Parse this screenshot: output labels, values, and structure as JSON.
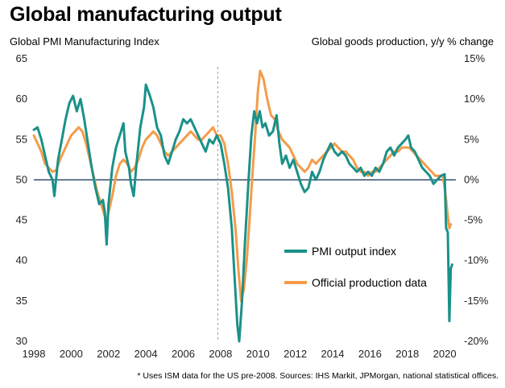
{
  "chart_data": {
    "type": "line",
    "title": "Global manufacturing output",
    "ylabel_left": "Global  PMI Manufacturing Index",
    "ylabel_right": "Global  goods production, y/y % change",
    "footnote": "* Uses ISM data for the US pre-2008. Sources: IHS Markit, JPMorgan, national statistical offices.",
    "x_ticks": [
      "1998",
      "2000",
      "2002",
      "2004",
      "2006",
      "2008",
      "2010",
      "2012",
      "2014",
      "2016",
      "2018",
      "2020"
    ],
    "xlim": [
      1998,
      2020.6
    ],
    "y_left_ticks": [
      "65",
      "60",
      "55",
      "50",
      "45",
      "40",
      "35",
      "30"
    ],
    "y_left_lim": [
      30,
      65
    ],
    "y_right_ticks": [
      "15%",
      "10%",
      "5%",
      "0%",
      "-5%",
      "-10%",
      "-15%",
      "-20%"
    ],
    "y_right_lim": [
      -20,
      15
    ],
    "reference_line": 50,
    "vertical_marker": 2007.85,
    "colors": {
      "pmi": "#1a9189",
      "production": "#f49c4a",
      "refline": "#1f3a5f",
      "marker": "#9a9a9a"
    },
    "legend": [
      {
        "name": "PMI output index",
        "color": "#1a9189"
      },
      {
        "name": "Official production data",
        "color": "#f49c4a"
      }
    ],
    "series": [
      {
        "name": "PMI output index",
        "axis": "left",
        "points": [
          [
            1998.0,
            56.2
          ],
          [
            1998.2,
            56.5
          ],
          [
            1998.4,
            55.0
          ],
          [
            1998.6,
            53.0
          ],
          [
            1998.8,
            51.0
          ],
          [
            1999.0,
            50.0
          ],
          [
            1999.1,
            48.0
          ],
          [
            1999.3,
            52.5
          ],
          [
            1999.5,
            55.0
          ],
          [
            1999.7,
            57.5
          ],
          [
            1999.9,
            59.5
          ],
          [
            2000.1,
            60.4
          ],
          [
            2000.3,
            58.5
          ],
          [
            2000.5,
            60.0
          ],
          [
            2000.7,
            57.5
          ],
          [
            2000.9,
            54.5
          ],
          [
            2001.1,
            51.5
          ],
          [
            2001.3,
            49.0
          ],
          [
            2001.5,
            47.0
          ],
          [
            2001.7,
            47.5
          ],
          [
            2001.8,
            46.0
          ],
          [
            2001.9,
            42.0
          ],
          [
            2002.0,
            47.0
          ],
          [
            2002.2,
            51.5
          ],
          [
            2002.4,
            54.0
          ],
          [
            2002.6,
            55.5
          ],
          [
            2002.8,
            57.0
          ],
          [
            2002.9,
            53.5
          ],
          [
            2003.1,
            51.5
          ],
          [
            2003.2,
            49.5
          ],
          [
            2003.35,
            48.0
          ],
          [
            2003.5,
            52.0
          ],
          [
            2003.7,
            56.5
          ],
          [
            2003.9,
            59.0
          ],
          [
            2004.0,
            61.8
          ],
          [
            2004.2,
            60.5
          ],
          [
            2004.4,
            59.0
          ],
          [
            2004.6,
            56.5
          ],
          [
            2004.8,
            55.5
          ],
          [
            2005.0,
            53.0
          ],
          [
            2005.2,
            52.0
          ],
          [
            2005.4,
            53.5
          ],
          [
            2005.6,
            55.0
          ],
          [
            2005.8,
            56.0
          ],
          [
            2006.0,
            57.5
          ],
          [
            2006.2,
            57.0
          ],
          [
            2006.4,
            57.5
          ],
          [
            2006.6,
            56.5
          ],
          [
            2006.8,
            55.5
          ],
          [
            2007.0,
            54.5
          ],
          [
            2007.2,
            53.5
          ],
          [
            2007.4,
            55.0
          ],
          [
            2007.6,
            54.5
          ],
          [
            2007.8,
            55.5
          ],
          [
            2008.0,
            54.5
          ],
          [
            2008.2,
            52.0
          ],
          [
            2008.4,
            49.0
          ],
          [
            2008.6,
            44.0
          ],
          [
            2008.75,
            38.0
          ],
          [
            2008.9,
            32.0
          ],
          [
            2009.0,
            30.0
          ],
          [
            2009.15,
            35.0
          ],
          [
            2009.3,
            42.0
          ],
          [
            2009.5,
            50.0
          ],
          [
            2009.65,
            55.5
          ],
          [
            2009.8,
            58.5
          ],
          [
            2009.95,
            57.0
          ],
          [
            2010.1,
            58.5
          ],
          [
            2010.25,
            56.5
          ],
          [
            2010.4,
            57.0
          ],
          [
            2010.6,
            55.5
          ],
          [
            2010.8,
            56.0
          ],
          [
            2011.0,
            58.0
          ],
          [
            2011.15,
            54.5
          ],
          [
            2011.3,
            52.0
          ],
          [
            2011.5,
            53.0
          ],
          [
            2011.7,
            51.5
          ],
          [
            2011.9,
            52.5
          ],
          [
            2012.1,
            51.0
          ],
          [
            2012.3,
            49.5
          ],
          [
            2012.5,
            48.5
          ],
          [
            2012.7,
            49.0
          ],
          [
            2012.9,
            51.0
          ],
          [
            2013.1,
            50.0
          ],
          [
            2013.3,
            51.0
          ],
          [
            2013.5,
            52.5
          ],
          [
            2013.7,
            53.5
          ],
          [
            2013.9,
            54.5
          ],
          [
            2014.1,
            53.5
          ],
          [
            2014.3,
            53.0
          ],
          [
            2014.5,
            53.5
          ],
          [
            2014.7,
            53.0
          ],
          [
            2014.9,
            52.0
          ],
          [
            2015.1,
            51.5
          ],
          [
            2015.3,
            51.0
          ],
          [
            2015.5,
            51.5
          ],
          [
            2015.7,
            50.5
          ],
          [
            2015.9,
            51.0
          ],
          [
            2016.1,
            50.5
          ],
          [
            2016.3,
            51.5
          ],
          [
            2016.5,
            51.0
          ],
          [
            2016.7,
            52.0
          ],
          [
            2016.9,
            53.5
          ],
          [
            2017.1,
            54.0
          ],
          [
            2017.3,
            53.0
          ],
          [
            2017.5,
            54.0
          ],
          [
            2017.7,
            54.5
          ],
          [
            2017.9,
            55.0
          ],
          [
            2018.05,
            55.5
          ],
          [
            2018.2,
            54.0
          ],
          [
            2018.4,
            53.5
          ],
          [
            2018.6,
            52.5
          ],
          [
            2018.8,
            51.5
          ],
          [
            2019.0,
            51.0
          ],
          [
            2019.2,
            50.5
          ],
          [
            2019.4,
            49.5
          ],
          [
            2019.6,
            50.0
          ],
          [
            2019.8,
            50.5
          ],
          [
            2020.0,
            50.7
          ],
          [
            2020.08,
            44.0
          ],
          [
            2020.17,
            43.5
          ],
          [
            2020.25,
            32.5
          ],
          [
            2020.33,
            39.0
          ],
          [
            2020.4,
            39.5
          ]
        ]
      },
      {
        "name": "Official production data",
        "axis": "right",
        "points": [
          [
            1998.0,
            5.5
          ],
          [
            1998.2,
            4.5
          ],
          [
            1998.4,
            3.5
          ],
          [
            1998.6,
            2.0
          ],
          [
            1998.8,
            1.5
          ],
          [
            1999.0,
            1.0
          ],
          [
            1999.2,
            1.2
          ],
          [
            1999.4,
            2.5
          ],
          [
            1999.6,
            3.5
          ],
          [
            1999.8,
            4.5
          ],
          [
            2000.0,
            5.5
          ],
          [
            2000.2,
            6.0
          ],
          [
            2000.4,
            6.5
          ],
          [
            2000.6,
            6.0
          ],
          [
            2000.8,
            4.5
          ],
          [
            2001.0,
            2.5
          ],
          [
            2001.2,
            0.5
          ],
          [
            2001.4,
            -1.5
          ],
          [
            2001.6,
            -3.0
          ],
          [
            2001.8,
            -4.5
          ],
          [
            2001.9,
            -5.0
          ],
          [
            2002.0,
            -4.0
          ],
          [
            2002.2,
            -2.0
          ],
          [
            2002.4,
            0.5
          ],
          [
            2002.6,
            2.0
          ],
          [
            2002.8,
            2.5
          ],
          [
            2003.0,
            2.0
          ],
          [
            2003.2,
            1.0
          ],
          [
            2003.4,
            1.5
          ],
          [
            2003.6,
            2.5
          ],
          [
            2003.8,
            4.0
          ],
          [
            2004.0,
            5.0
          ],
          [
            2004.2,
            5.5
          ],
          [
            2004.4,
            6.0
          ],
          [
            2004.6,
            5.5
          ],
          [
            2004.8,
            4.5
          ],
          [
            2005.0,
            3.5
          ],
          [
            2005.2,
            3.0
          ],
          [
            2005.4,
            3.5
          ],
          [
            2005.6,
            4.0
          ],
          [
            2005.8,
            4.5
          ],
          [
            2006.0,
            5.0
          ],
          [
            2006.2,
            5.5
          ],
          [
            2006.4,
            6.0
          ],
          [
            2006.6,
            5.5
          ],
          [
            2006.8,
            5.0
          ],
          [
            2007.0,
            5.0
          ],
          [
            2007.2,
            5.5
          ],
          [
            2007.4,
            6.0
          ],
          [
            2007.6,
            6.5
          ],
          [
            2007.8,
            5.5
          ],
          [
            2008.0,
            5.5
          ],
          [
            2008.2,
            4.5
          ],
          [
            2008.4,
            2.0
          ],
          [
            2008.6,
            -1.5
          ],
          [
            2008.8,
            -6.0
          ],
          [
            2008.95,
            -11.0
          ],
          [
            2009.1,
            -15.0
          ],
          [
            2009.25,
            -13.5
          ],
          [
            2009.4,
            -10.0
          ],
          [
            2009.55,
            -5.0
          ],
          [
            2009.7,
            0.5
          ],
          [
            2009.85,
            5.5
          ],
          [
            2010.0,
            11.0
          ],
          [
            2010.12,
            13.5
          ],
          [
            2010.3,
            12.5
          ],
          [
            2010.5,
            10.0
          ],
          [
            2010.7,
            8.0
          ],
          [
            2010.9,
            7.5
          ],
          [
            2011.1,
            6.0
          ],
          [
            2011.3,
            5.0
          ],
          [
            2011.5,
            4.5
          ],
          [
            2011.7,
            4.0
          ],
          [
            2011.9,
            3.0
          ],
          [
            2012.1,
            2.0
          ],
          [
            2012.3,
            1.5
          ],
          [
            2012.5,
            1.0
          ],
          [
            2012.7,
            1.5
          ],
          [
            2012.9,
            2.5
          ],
          [
            2013.1,
            2.0
          ],
          [
            2013.3,
            2.5
          ],
          [
            2013.5,
            3.0
          ],
          [
            2013.7,
            3.5
          ],
          [
            2013.9,
            4.0
          ],
          [
            2014.1,
            4.5
          ],
          [
            2014.3,
            4.0
          ],
          [
            2014.5,
            3.5
          ],
          [
            2014.7,
            3.5
          ],
          [
            2014.9,
            3.0
          ],
          [
            2015.1,
            2.5
          ],
          [
            2015.3,
            1.5
          ],
          [
            2015.5,
            1.0
          ],
          [
            2015.7,
            1.0
          ],
          [
            2015.9,
            0.5
          ],
          [
            2016.1,
            1.0
          ],
          [
            2016.3,
            1.0
          ],
          [
            2016.5,
            1.5
          ],
          [
            2016.7,
            2.0
          ],
          [
            2016.9,
            2.5
          ],
          [
            2017.1,
            3.0
          ],
          [
            2017.3,
            3.5
          ],
          [
            2017.5,
            3.5
          ],
          [
            2017.7,
            4.0
          ],
          [
            2017.9,
            4.0
          ],
          [
            2018.1,
            4.0
          ],
          [
            2018.3,
            3.5
          ],
          [
            2018.5,
            3.0
          ],
          [
            2018.7,
            2.5
          ],
          [
            2018.9,
            2.0
          ],
          [
            2019.1,
            1.5
          ],
          [
            2019.3,
            1.0
          ],
          [
            2019.5,
            0.5
          ],
          [
            2019.7,
            0.5
          ],
          [
            2019.9,
            0.5
          ],
          [
            2020.0,
            -1.0
          ],
          [
            2020.08,
            -2.5
          ],
          [
            2020.17,
            -4.5
          ],
          [
            2020.25,
            -6.0
          ],
          [
            2020.33,
            -5.5
          ]
        ]
      }
    ]
  }
}
